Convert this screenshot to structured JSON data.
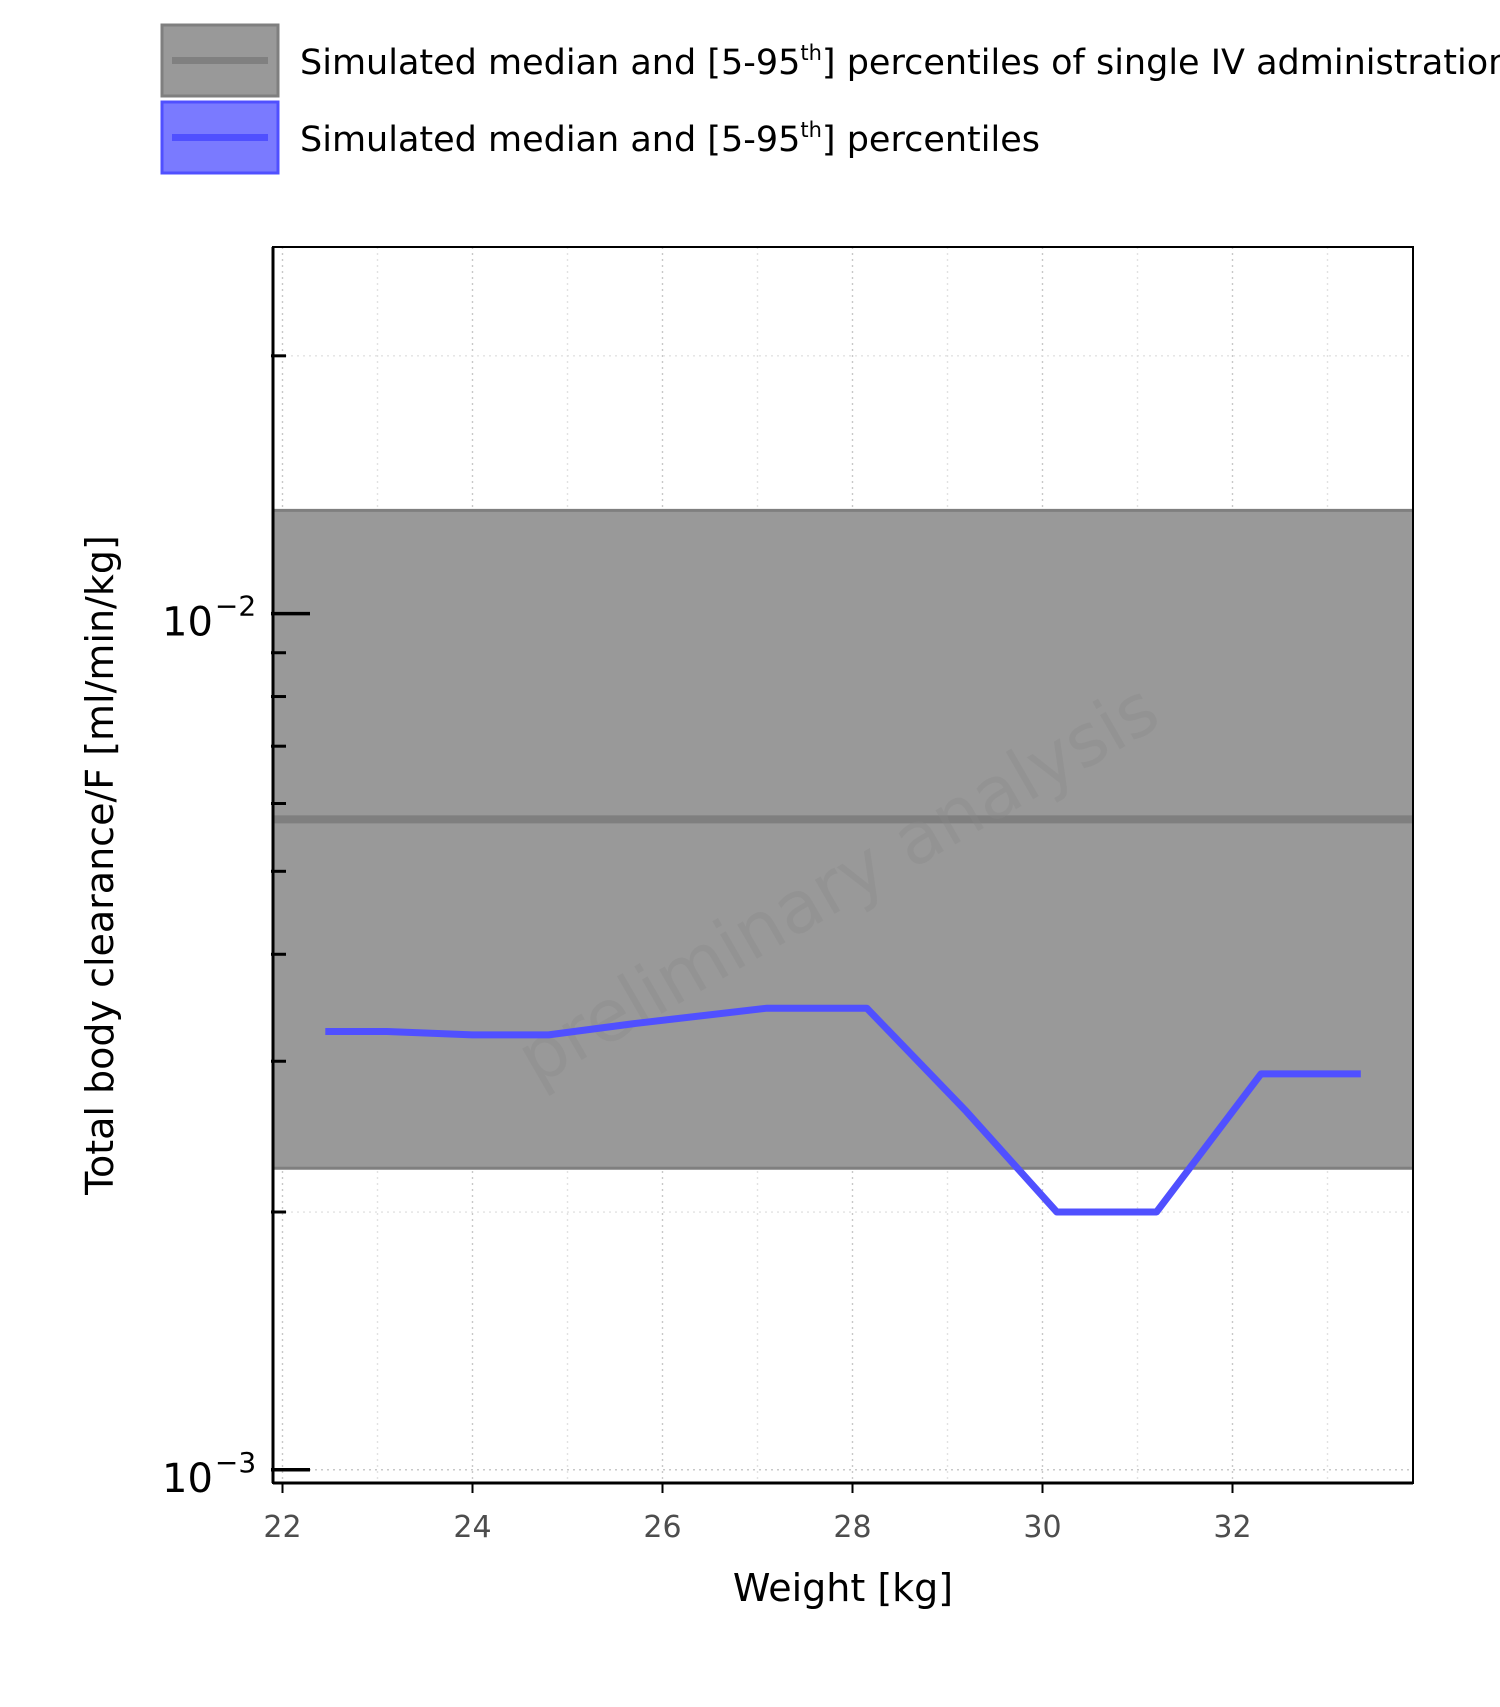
{
  "chart_data": {
    "type": "line",
    "title": "",
    "xlabel": "Weight [kg]",
    "ylabel": "Total body clearance/F [ml/min/kg]",
    "xlim": [
      21.9,
      33.9
    ],
    "ylim": [
      0.000965,
      0.0268
    ],
    "yscale": "log",
    "grid": true,
    "legend_position": "top",
    "xticks": [
      22,
      24,
      26,
      28,
      30,
      32
    ],
    "xtick_labels": [
      "22",
      "24",
      "26",
      "28",
      "30",
      "32"
    ],
    "ytick_labels": [
      {
        "value": 0.01,
        "base": "10",
        "exp": "−2"
      },
      {
        "value": 0.001,
        "base": "10",
        "exp": "−3"
      }
    ],
    "legend": [
      {
        "label_main": "Simulated median and [5-95",
        "label_sup": "th",
        "label_end": "] percentiles of single IV administration",
        "color": "#808080"
      },
      {
        "label_main": "Simulated median and [5-95",
        "label_sup": "th",
        "label_end": "] percentiles",
        "color": "#5050ff"
      }
    ],
    "band": {
      "lower": 0.00225,
      "median": 0.00575,
      "upper": 0.0132,
      "fill": "#999999",
      "edge": "#7f7f7f"
    },
    "series": [
      {
        "color": "#5050ff",
        "x": [
          22.45,
          23.1,
          24.0,
          24.8,
          25.7,
          27.1,
          28.15,
          29.2,
          30.15,
          31.2,
          32.3,
          33.35
        ],
        "y": [
          0.00325,
          0.00325,
          0.00322,
          0.00322,
          0.00332,
          0.00346,
          0.00346,
          0.00262,
          0.002,
          0.002,
          0.0029,
          0.0029
        ]
      }
    ],
    "watermark": "preliminary analysis"
  }
}
